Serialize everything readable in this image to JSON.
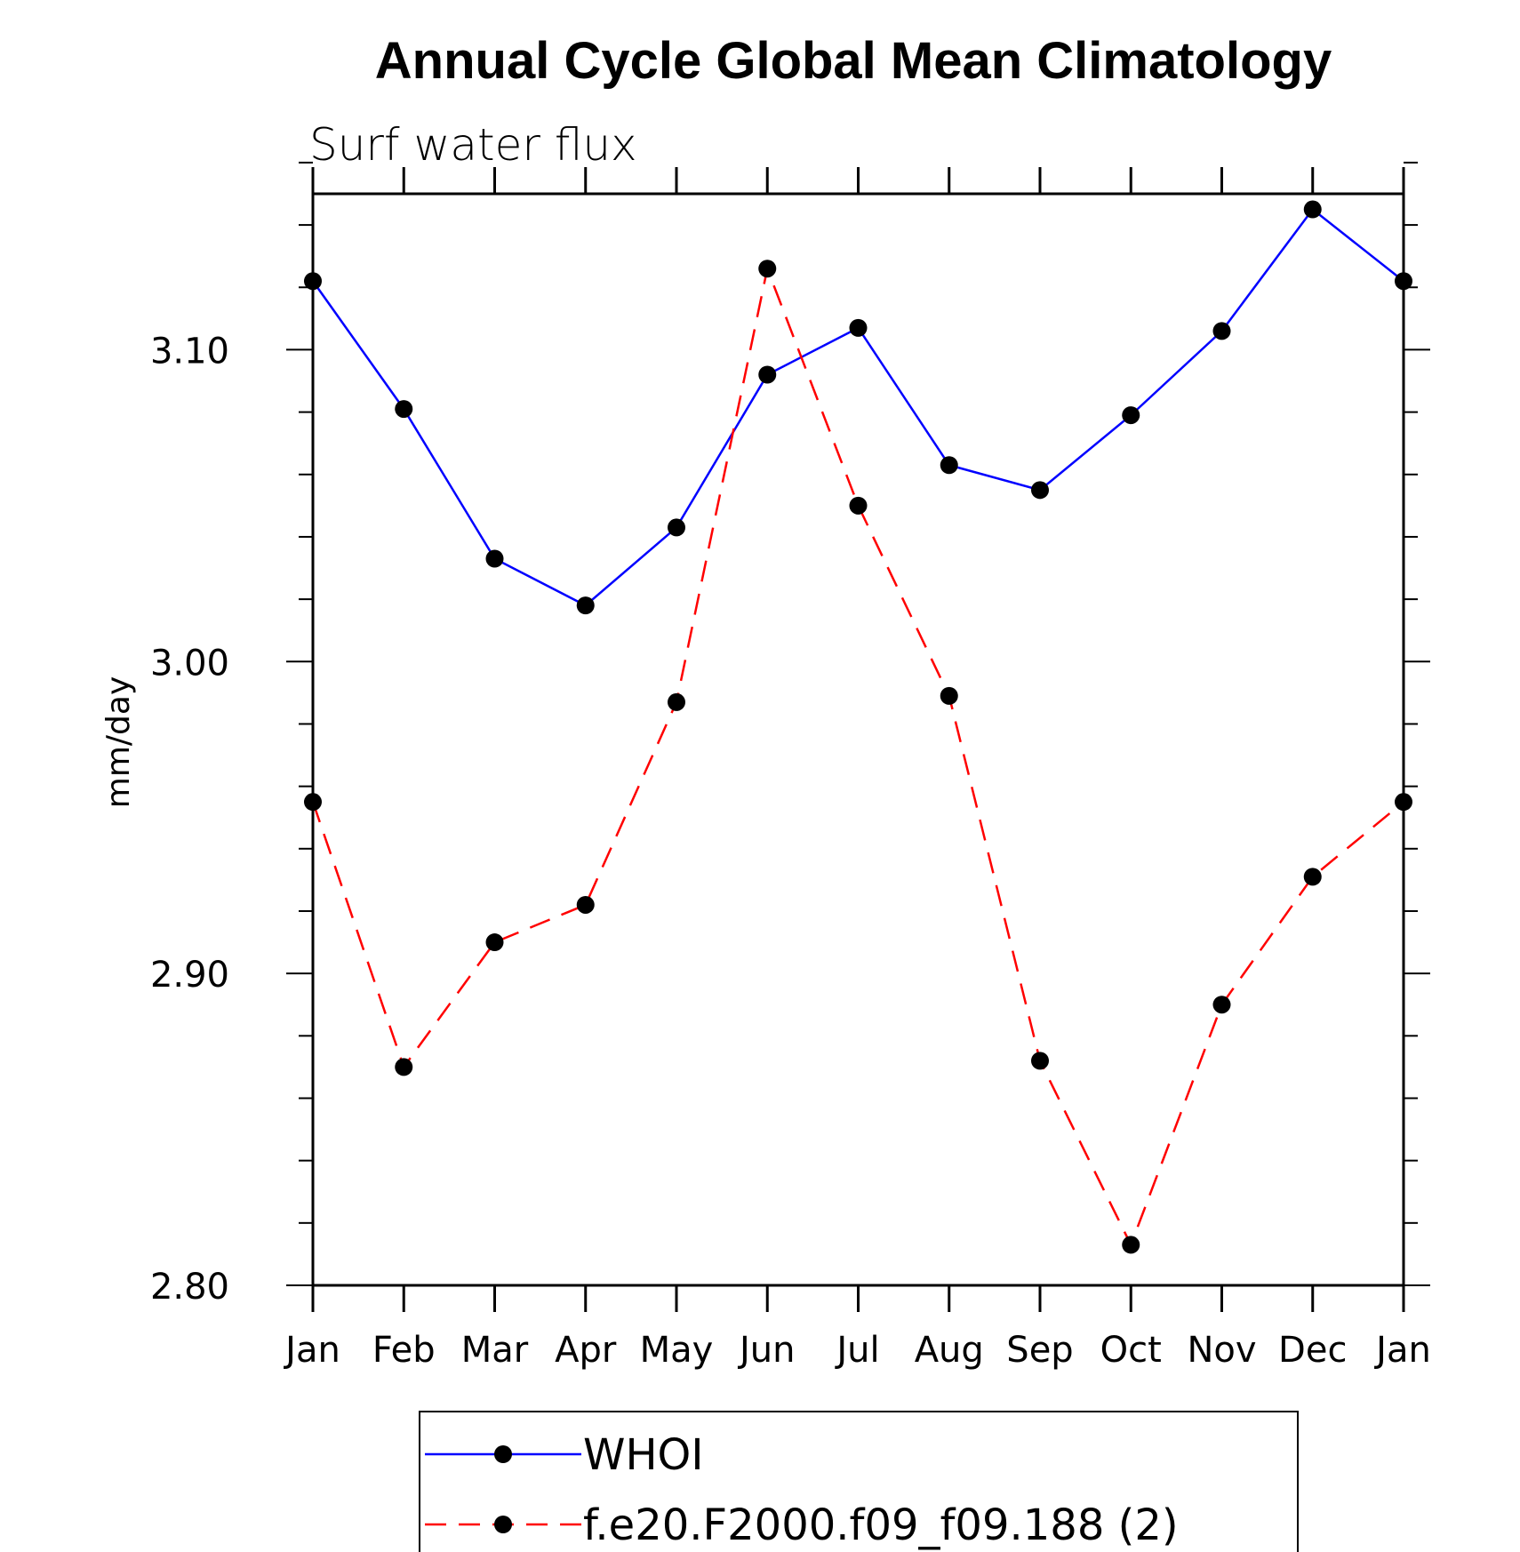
{
  "chart_data": {
    "type": "line",
    "title": "Annual Cycle Global Mean Climatology",
    "subtitle": "Surf water flux",
    "xlabel": "",
    "ylabel": "mm/day",
    "categories": [
      "Jan",
      "Feb",
      "Mar",
      "Apr",
      "May",
      "Jun",
      "Jul",
      "Aug",
      "Sep",
      "Oct",
      "Nov",
      "Dec",
      "Jan"
    ],
    "ylim": [
      2.8,
      3.15
    ],
    "yticks": [
      "2.80",
      "2.90",
      "3.00",
      "3.10"
    ],
    "grid": false,
    "legend": "bottom",
    "series": [
      {
        "name": "WHOI",
        "color": "#0000ff",
        "style": "solid",
        "marker": "filled-circle",
        "values": [
          3.122,
          3.081,
          3.033,
          3.018,
          3.043,
          3.092,
          3.107,
          3.063,
          3.055,
          3.079,
          3.106,
          3.145,
          3.122
        ]
      },
      {
        "name": "f.e20.F2000.f09_f09.188 (2)",
        "color": "#ff0000",
        "style": "dashed",
        "marker": "filled-circle",
        "values": [
          2.955,
          2.87,
          2.91,
          2.922,
          2.987,
          3.126,
          3.05,
          2.989,
          2.872,
          2.813,
          2.89,
          2.931,
          2.955
        ]
      }
    ]
  }
}
